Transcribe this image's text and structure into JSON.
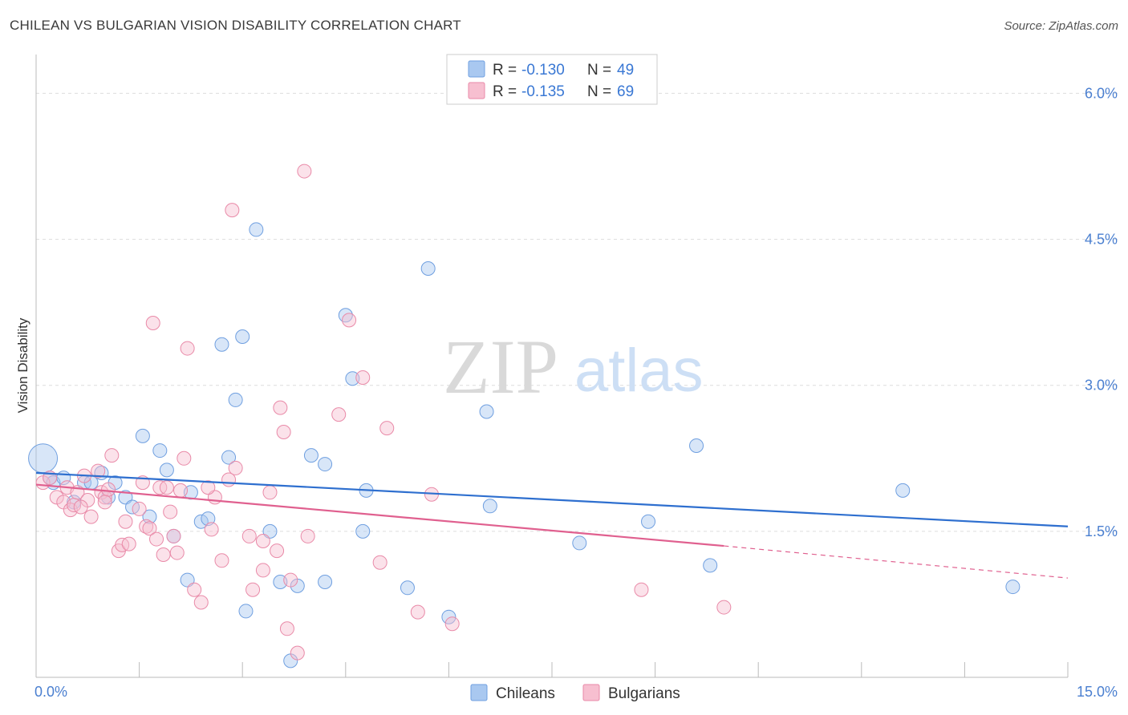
{
  "title": "CHILEAN VS BULGARIAN VISION DISABILITY CORRELATION CHART",
  "source": "Source: ZipAtlas.com",
  "watermark": {
    "zip": "ZIP",
    "atlas": "atlas"
  },
  "legend": {
    "rows": [
      {
        "r_label": "R =",
        "r_value": "-0.130",
        "n_label": "N =",
        "n_value": "49",
        "color": "#a9c8f0",
        "stroke": "#6f9fe0"
      },
      {
        "r_label": "R =",
        "r_value": "-0.135",
        "n_label": "N =",
        "n_value": "69",
        "color": "#f7bfd0",
        "stroke": "#e98aa8"
      }
    ]
  },
  "bottom_legend": [
    "Chileans",
    "Bulgarians"
  ],
  "colors": {
    "chileans": "#6f9fe0",
    "bulgarians": "#e98aa8",
    "trend_blue": "#2e6fcf",
    "trend_pink": "#e0608f"
  },
  "chart_data": {
    "type": "scatter",
    "ylabel": "Vision Disability",
    "xlim": [
      0,
      15
    ],
    "ylim": [
      0,
      6.3
    ],
    "x_ticks": [
      "0.0%",
      "15.0%"
    ],
    "y_ticks": [
      {
        "value": 1.5,
        "label": "1.5%"
      },
      {
        "value": 3.0,
        "label": "3.0%"
      },
      {
        "value": 4.5,
        "label": "4.5%"
      },
      {
        "value": 6.0,
        "label": "6.0%"
      }
    ],
    "grid": true,
    "series": [
      {
        "name": "Chileans",
        "trend": {
          "x0": 0,
          "y0": 2.1,
          "x1": 15,
          "y1": 1.55
        },
        "points": [
          [
            0.1,
            2.25
          ],
          [
            0.2,
            2.05
          ],
          [
            0.25,
            2.0
          ],
          [
            0.4,
            2.05
          ],
          [
            0.55,
            1.8
          ],
          [
            0.7,
            2.0
          ],
          [
            0.8,
            2.0
          ],
          [
            0.95,
            2.1
          ],
          [
            1.05,
            1.85
          ],
          [
            1.15,
            2.0
          ],
          [
            1.3,
            1.85
          ],
          [
            1.4,
            1.75
          ],
          [
            1.55,
            2.48
          ],
          [
            1.65,
            1.65
          ],
          [
            1.8,
            2.33
          ],
          [
            1.9,
            2.13
          ],
          [
            2.0,
            1.45
          ],
          [
            2.2,
            1.0
          ],
          [
            2.25,
            1.9
          ],
          [
            2.4,
            1.6
          ],
          [
            2.5,
            1.63
          ],
          [
            2.7,
            3.42
          ],
          [
            2.8,
            2.26
          ],
          [
            2.9,
            2.85
          ],
          [
            3.0,
            3.5
          ],
          [
            3.05,
            0.68
          ],
          [
            3.2,
            4.6
          ],
          [
            3.4,
            1.5
          ],
          [
            3.55,
            0.98
          ],
          [
            3.7,
            0.17
          ],
          [
            3.8,
            0.94
          ],
          [
            4.0,
            2.28
          ],
          [
            4.2,
            0.98
          ],
          [
            4.2,
            2.19
          ],
          [
            4.5,
            3.72
          ],
          [
            4.6,
            3.07
          ],
          [
            4.75,
            1.5
          ],
          [
            4.8,
            1.92
          ],
          [
            5.4,
            0.92
          ],
          [
            5.7,
            4.2
          ],
          [
            6.0,
            0.62
          ],
          [
            6.55,
            2.73
          ],
          [
            6.6,
            1.76
          ],
          [
            7.9,
            1.38
          ],
          [
            8.9,
            1.6
          ],
          [
            9.6,
            2.38
          ],
          [
            9.8,
            1.15
          ],
          [
            12.6,
            1.92
          ],
          [
            14.2,
            0.93
          ]
        ]
      },
      {
        "name": "Bulgarians",
        "trend": {
          "x0": 0,
          "y0": 1.98,
          "x1": 10.0,
          "y1": 1.35,
          "dash_x1": 15,
          "dash_y1": 1.02
        },
        "points": [
          [
            0.1,
            2.0
          ],
          [
            0.2,
            2.05
          ],
          [
            0.3,
            1.85
          ],
          [
            0.4,
            1.8
          ],
          [
            0.45,
            1.95
          ],
          [
            0.5,
            1.72
          ],
          [
            0.55,
            1.77
          ],
          [
            0.6,
            1.9
          ],
          [
            0.7,
            2.07
          ],
          [
            0.75,
            1.82
          ],
          [
            0.8,
            1.65
          ],
          [
            0.9,
            2.12
          ],
          [
            0.95,
            1.9
          ],
          [
            1.0,
            1.85
          ],
          [
            1.05,
            1.93
          ],
          [
            1.1,
            2.28
          ],
          [
            1.2,
            1.3
          ],
          [
            1.25,
            1.36
          ],
          [
            1.3,
            1.6
          ],
          [
            1.35,
            1.37
          ],
          [
            1.5,
            1.73
          ],
          [
            1.55,
            2.0
          ],
          [
            1.6,
            1.55
          ],
          [
            1.65,
            1.53
          ],
          [
            1.7,
            3.64
          ],
          [
            1.75,
            1.42
          ],
          [
            1.8,
            1.95
          ],
          [
            1.85,
            1.26
          ],
          [
            1.9,
            1.95
          ],
          [
            1.95,
            1.7
          ],
          [
            2.0,
            1.45
          ],
          [
            2.05,
            1.28
          ],
          [
            2.1,
            1.92
          ],
          [
            2.15,
            2.25
          ],
          [
            2.2,
            3.38
          ],
          [
            2.3,
            0.9
          ],
          [
            2.4,
            0.77
          ],
          [
            2.55,
            1.52
          ],
          [
            2.6,
            1.85
          ],
          [
            2.7,
            1.2
          ],
          [
            2.8,
            2.03
          ],
          [
            2.85,
            4.8
          ],
          [
            2.9,
            2.15
          ],
          [
            3.1,
            1.45
          ],
          [
            3.15,
            0.9
          ],
          [
            3.3,
            1.1
          ],
          [
            3.4,
            1.9
          ],
          [
            3.5,
            1.3
          ],
          [
            3.55,
            2.77
          ],
          [
            3.6,
            2.52
          ],
          [
            3.65,
            0.5
          ],
          [
            3.7,
            1.0
          ],
          [
            3.8,
            0.25
          ],
          [
            3.9,
            5.2
          ],
          [
            3.95,
            1.45
          ],
          [
            4.4,
            2.7
          ],
          [
            4.55,
            3.67
          ],
          [
            4.75,
            3.08
          ],
          [
            5.0,
            1.18
          ],
          [
            5.1,
            2.56
          ],
          [
            5.55,
            0.67
          ],
          [
            5.75,
            1.88
          ],
          [
            6.05,
            0.55
          ],
          [
            8.8,
            0.9
          ],
          [
            10.0,
            0.72
          ],
          [
            0.65,
            1.75
          ],
          [
            1.0,
            1.8
          ],
          [
            2.5,
            1.95
          ],
          [
            3.3,
            1.4
          ]
        ]
      }
    ]
  }
}
